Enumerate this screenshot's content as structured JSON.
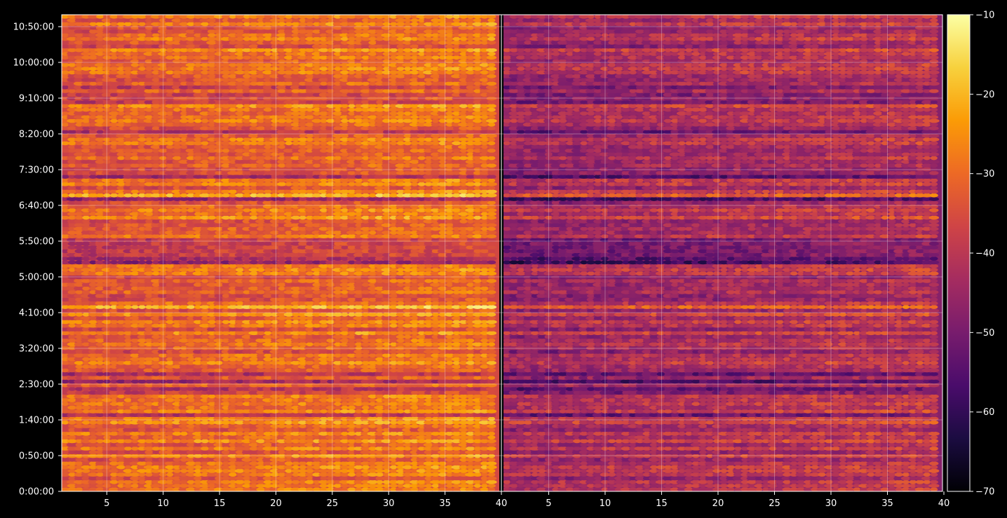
{
  "chart_data": {
    "type": "heatmap",
    "title": "",
    "xlabel": "",
    "ylabel": "",
    "grid": true,
    "background": "#000000",
    "colormap": "inferno",
    "colormap_stops": [
      "#000004",
      "#1b0c41",
      "#4a0c6b",
      "#781c6d",
      "#a52c60",
      "#cf4446",
      "#ed6925",
      "#fb9b06",
      "#f7d13d",
      "#fcffa4"
    ],
    "panels": [
      {
        "name": "left",
        "x_range": [
          1,
          39.5
        ],
        "dimmer_by": 0
      },
      {
        "name": "right",
        "x_range": [
          1,
          39.5
        ],
        "dimmer_by": 12
      }
    ],
    "x_tick_labels_left": [
      "5",
      "10",
      "15",
      "20",
      "25",
      "30",
      "35",
      "40"
    ],
    "x_tick_labels_right": [
      "5",
      "10",
      "15",
      "20",
      "25",
      "30",
      "35",
      "40"
    ],
    "x_ticks": [
      5,
      10,
      15,
      20,
      25,
      30,
      35,
      40
    ],
    "y_tick_labels": [
      "0:00:00",
      "0:50:00",
      "1:40:00",
      "2:30:00",
      "3:20:00",
      "4:10:00",
      "5:00:00",
      "5:50:00",
      "6:40:00",
      "7:30:00",
      "8:20:00",
      "9:10:00",
      "10:00:00",
      "10:50:00"
    ],
    "y_ticks_seconds": [
      0,
      3000,
      6000,
      9000,
      12000,
      15000,
      18000,
      21000,
      24000,
      27000,
      30000,
      33000,
      36000,
      39000
    ],
    "y_range_seconds": [
      0,
      40000
    ],
    "colorbar": {
      "range": [
        -70,
        -10
      ],
      "tick_values": [
        -70,
        -60,
        -50,
        -40,
        -30,
        -20,
        -10
      ],
      "tick_labels": [
        "−70",
        "−60",
        "−50",
        "−40",
        "−30",
        "−20",
        "−10"
      ]
    },
    "value_model": {
      "typical_range_dB": [
        -50,
        -22
      ],
      "left_panel_mean_dB": -32,
      "right_panel_mean_dB": -44,
      "dark_bands_seconds": [
        [
          19500,
          21200
        ],
        [
          26400,
          27000
        ],
        [
          32600,
          33300
        ],
        [
          8200,
          8600
        ],
        [
          6300,
          6700
        ]
      ],
      "bright_rows_seconds": [
        [
          33100,
          33300
        ],
        [
          27400,
          27600
        ],
        [
          9600,
          9800
        ],
        [
          15200,
          15700
        ],
        [
          24800,
          25200
        ]
      ]
    }
  }
}
